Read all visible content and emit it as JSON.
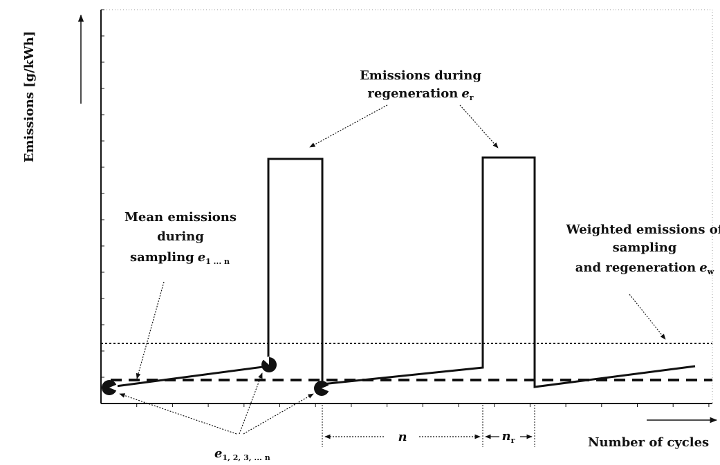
{
  "axes": {
    "y_label": "Emissions [g/kWh]",
    "x_label": "Number of cycles"
  },
  "labels": {
    "regen_line1": "Emissions during",
    "regen_line2": "regeneration",
    "regen_var": "e",
    "regen_sub": "r",
    "mean_line1": "Mean emissions",
    "mean_line2": "during",
    "mean_line3": "sampling",
    "mean_var": "e",
    "mean_sub": "1 ... n",
    "weighted_line1": "Weighted emissions of",
    "weighted_line2": "sampling",
    "weighted_line3": "and regeneration",
    "weighted_var": "e",
    "weighted_sub": "w",
    "points_var": "e",
    "points_sub": "1, 2, 3, ... n",
    "n_label": "n",
    "nr_var": "n",
    "nr_sub": "r"
  },
  "colors": {
    "ink": "#111111",
    "paper": "#ffffff"
  }
}
